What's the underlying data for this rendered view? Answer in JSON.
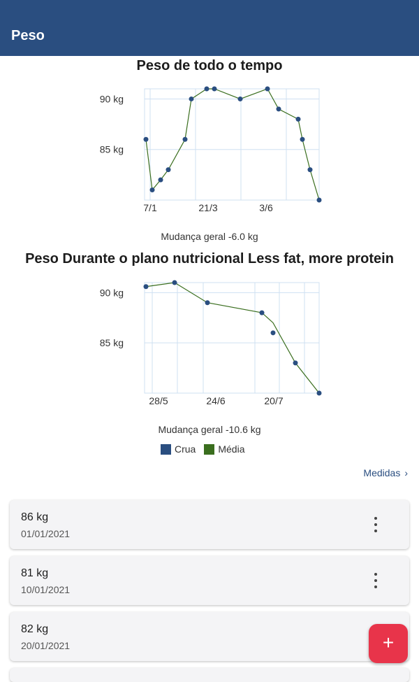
{
  "appbar": {
    "title": "Peso"
  },
  "charts": [
    {
      "title": "Peso de todo o tempo",
      "change_text": "Mudança geral -6.0 kg",
      "y_ticks": [
        "90 kg",
        "85 kg"
      ],
      "x_ticks": [
        "7/1",
        "21/3",
        "3/6"
      ]
    },
    {
      "title": "Peso Durante o plano nutricional Less fat, more protein",
      "change_text": "Mudança geral -10.6 kg",
      "y_ticks": [
        "90 kg",
        "85 kg"
      ],
      "x_ticks": [
        "28/5",
        "24/6",
        "20/7"
      ]
    }
  ],
  "chart_data": [
    {
      "type": "line",
      "title": "Peso de todo o tempo",
      "ylim": [
        80,
        91
      ],
      "y_ticks": [
        85,
        90
      ],
      "x_ticks": [
        "7/1",
        "21/3",
        "3/6"
      ],
      "series": [
        {
          "name": "Crua",
          "color": "#2a4e80",
          "values": [
            86,
            81,
            82,
            83,
            86,
            90,
            91,
            91,
            90,
            91,
            89,
            88,
            86,
            83,
            80
          ]
        },
        {
          "name": "Média",
          "color": "#3a6e1e",
          "values": [
            86,
            81,
            82,
            83,
            86,
            90,
            91,
            91,
            90,
            91,
            89,
            88,
            86,
            83,
            80
          ]
        }
      ]
    },
    {
      "type": "line",
      "title": "Peso Durante o plano nutricional Less fat, more protein",
      "ylim": [
        80,
        91
      ],
      "y_ticks": [
        85,
        90
      ],
      "x_ticks": [
        "28/5",
        "24/6",
        "20/7"
      ],
      "series": [
        {
          "name": "Crua",
          "color": "#2a4e80",
          "values": [
            90.6,
            91,
            89,
            88,
            86,
            83,
            80
          ]
        },
        {
          "name": "Média",
          "color": "#3a6e1e",
          "values": [
            90.6,
            91,
            89,
            88,
            87,
            83,
            80
          ]
        }
      ]
    }
  ],
  "legend": [
    {
      "label": "Crua",
      "color": "#2a4e80"
    },
    {
      "label": "Média",
      "color": "#3a6e1e"
    }
  ],
  "medidas_link": "Medidas",
  "entries": [
    {
      "weight": "86 kg",
      "date": "01/01/2021"
    },
    {
      "weight": "81 kg",
      "date": "10/01/2021"
    },
    {
      "weight": "82 kg",
      "date": "20/01/2021"
    }
  ],
  "fab": {
    "icon": "plus-icon"
  }
}
